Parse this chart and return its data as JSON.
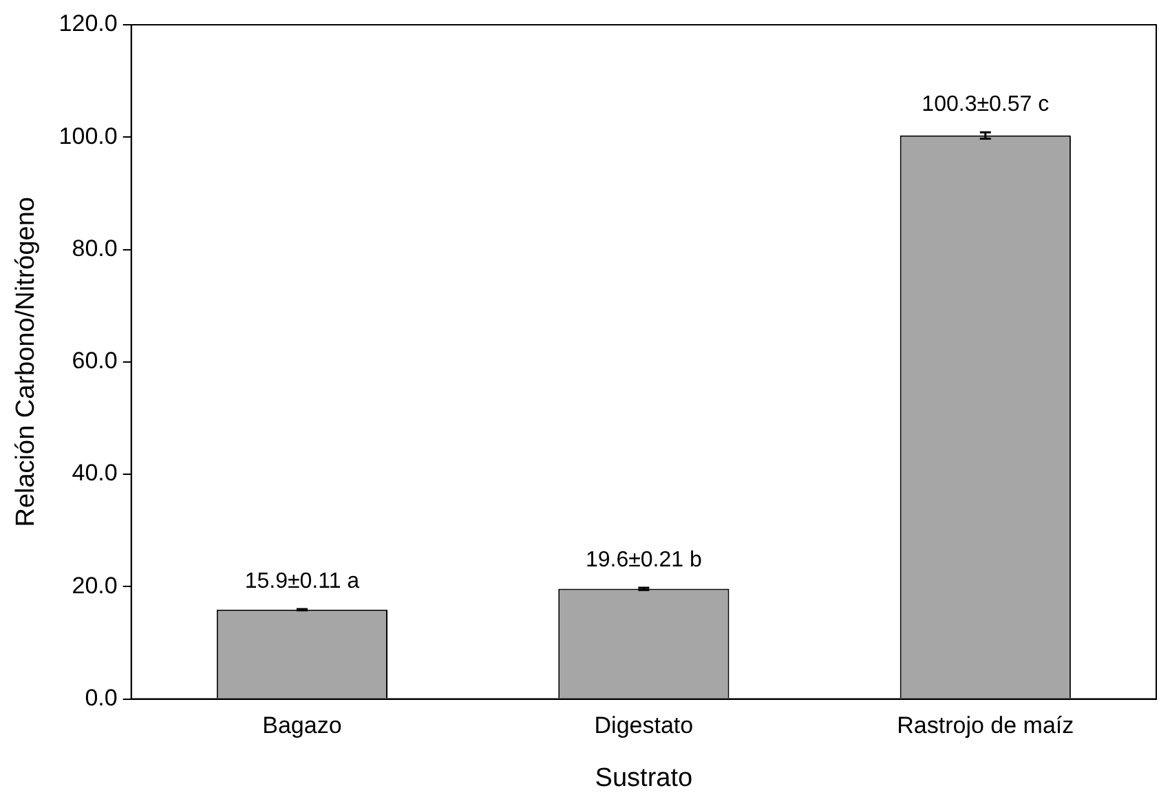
{
  "chart_data": {
    "type": "bar",
    "xlabel": "Sustrato",
    "ylabel": "Relación Carbono/Nitrógeno",
    "categories": [
      "Bagazo",
      "Digestato",
      "Rastrojo de maíz"
    ],
    "values": [
      15.9,
      19.6,
      100.3
    ],
    "color": "#a6a6a6",
    "errors": [
      0.11,
      0.21,
      0.57
    ],
    "value_labels": [
      "15.9±0.11 a",
      "19.6±0.21 b",
      "100.3±0.57 c"
    ],
    "ylim": [
      0,
      120
    ],
    "yticks": [
      {
        "value": 0,
        "label": "0.0"
      },
      {
        "value": 20,
        "label": "20.0"
      },
      {
        "value": 40,
        "label": "40.0"
      },
      {
        "value": 60,
        "label": "60.0"
      },
      {
        "value": 80,
        "label": "80.0"
      },
      {
        "value": 100,
        "label": "100.0"
      },
      {
        "value": 120,
        "label": "120.0"
      }
    ],
    "grid": false,
    "legend": false
  }
}
